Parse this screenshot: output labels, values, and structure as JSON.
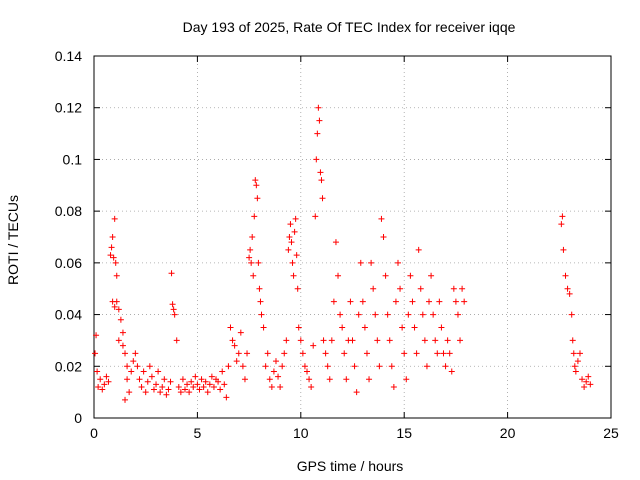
{
  "chart_data": {
    "type": "scatter",
    "title": "Day 193 of 2025, Rate Of TEC Index for receiver iqqe",
    "xlabel": "GPS time / hours",
    "ylabel": "ROTI / TECUs",
    "xlim": [
      0,
      25
    ],
    "ylim": [
      0,
      0.14
    ],
    "x_ticks": [
      "0",
      "5",
      "10",
      "15",
      "20",
      "25"
    ],
    "y_ticks": [
      "0",
      "0.02",
      "0.04",
      "0.06",
      "0.08",
      "0.1",
      "0.12",
      "0.14"
    ],
    "grid": true,
    "legend": "none",
    "marker": "+",
    "color": "#ff0000",
    "series": [
      {
        "points": [
          [
            0.05,
            0.025
          ],
          [
            0.1,
            0.032
          ],
          [
            0.15,
            0.018
          ],
          [
            0.2,
            0.012
          ],
          [
            0.3,
            0.015
          ],
          [
            0.4,
            0.011
          ],
          [
            0.5,
            0.013
          ],
          [
            0.6,
            0.016
          ],
          [
            0.7,
            0.014
          ],
          [
            0.8,
            0.063
          ],
          [
            0.85,
            0.066
          ],
          [
            0.9,
            0.07
          ],
          [
            0.95,
            0.062
          ],
          [
            1.0,
            0.077
          ],
          [
            1.05,
            0.06
          ],
          [
            1.1,
            0.055
          ],
          [
            0.9,
            0.045
          ],
          [
            1.0,
            0.043
          ],
          [
            1.1,
            0.045
          ],
          [
            1.2,
            0.042
          ],
          [
            1.3,
            0.038
          ],
          [
            1.4,
            0.033
          ],
          [
            1.5,
            0.025
          ],
          [
            1.6,
            0.02
          ],
          [
            1.2,
            0.03
          ],
          [
            1.4,
            0.028
          ],
          [
            1.6,
            0.015
          ],
          [
            1.5,
            0.007
          ],
          [
            1.7,
            0.01
          ],
          [
            1.8,
            0.018
          ],
          [
            1.9,
            0.022
          ],
          [
            2.0,
            0.025
          ],
          [
            2.1,
            0.02
          ],
          [
            2.2,
            0.015
          ],
          [
            2.3,
            0.012
          ],
          [
            2.4,
            0.018
          ],
          [
            2.5,
            0.01
          ],
          [
            2.6,
            0.014
          ],
          [
            2.7,
            0.02
          ],
          [
            2.8,
            0.016
          ],
          [
            2.9,
            0.011
          ],
          [
            3.0,
            0.013
          ],
          [
            3.1,
            0.018
          ],
          [
            3.2,
            0.01
          ],
          [
            3.3,
            0.012
          ],
          [
            3.4,
            0.015
          ],
          [
            3.5,
            0.009
          ],
          [
            3.6,
            0.011
          ],
          [
            3.7,
            0.014
          ],
          [
            3.75,
            0.056
          ],
          [
            3.8,
            0.044
          ],
          [
            3.85,
            0.042
          ],
          [
            3.9,
            0.04
          ],
          [
            4.0,
            0.03
          ],
          [
            4.1,
            0.012
          ],
          [
            4.2,
            0.01
          ],
          [
            4.3,
            0.015
          ],
          [
            4.4,
            0.011
          ],
          [
            4.5,
            0.013
          ],
          [
            4.6,
            0.01
          ],
          [
            4.7,
            0.014
          ],
          [
            4.8,
            0.012
          ],
          [
            4.9,
            0.016
          ],
          [
            5.0,
            0.013
          ],
          [
            5.1,
            0.011
          ],
          [
            5.2,
            0.015
          ],
          [
            5.3,
            0.012
          ],
          [
            5.4,
            0.014
          ],
          [
            5.5,
            0.01
          ],
          [
            5.6,
            0.013
          ],
          [
            5.7,
            0.016
          ],
          [
            5.8,
            0.012
          ],
          [
            5.9,
            0.015
          ],
          [
            6.0,
            0.014
          ],
          [
            6.1,
            0.011
          ],
          [
            6.2,
            0.018
          ],
          [
            6.3,
            0.013
          ],
          [
            6.4,
            0.008
          ],
          [
            6.5,
            0.02
          ],
          [
            6.6,
            0.035
          ],
          [
            6.7,
            0.03
          ],
          [
            6.8,
            0.028
          ],
          [
            6.9,
            0.022
          ],
          [
            7.0,
            0.025
          ],
          [
            7.1,
            0.033
          ],
          [
            7.2,
            0.02
          ],
          [
            7.3,
            0.015
          ],
          [
            7.4,
            0.025
          ],
          [
            7.5,
            0.062
          ],
          [
            7.55,
            0.065
          ],
          [
            7.6,
            0.06
          ],
          [
            7.65,
            0.07
          ],
          [
            7.7,
            0.055
          ],
          [
            7.75,
            0.078
          ],
          [
            7.8,
            0.092
          ],
          [
            7.85,
            0.09
          ],
          [
            7.9,
            0.085
          ],
          [
            7.95,
            0.06
          ],
          [
            8.0,
            0.05
          ],
          [
            8.05,
            0.045
          ],
          [
            8.1,
            0.04
          ],
          [
            8.2,
            0.035
          ],
          [
            8.3,
            0.02
          ],
          [
            8.4,
            0.025
          ],
          [
            8.5,
            0.015
          ],
          [
            8.6,
            0.012
          ],
          [
            8.7,
            0.018
          ],
          [
            8.8,
            0.022
          ],
          [
            8.9,
            0.016
          ],
          [
            9.0,
            0.012
          ],
          [
            9.1,
            0.02
          ],
          [
            9.2,
            0.025
          ],
          [
            9.3,
            0.03
          ],
          [
            9.4,
            0.065
          ],
          [
            9.45,
            0.07
          ],
          [
            9.5,
            0.075
          ],
          [
            9.55,
            0.068
          ],
          [
            9.6,
            0.06
          ],
          [
            9.65,
            0.055
          ],
          [
            9.7,
            0.072
          ],
          [
            9.75,
            0.077
          ],
          [
            9.8,
            0.063
          ],
          [
            9.85,
            0.05
          ],
          [
            9.9,
            0.035
          ],
          [
            10.0,
            0.03
          ],
          [
            10.1,
            0.025
          ],
          [
            10.2,
            0.02
          ],
          [
            10.3,
            0.018
          ],
          [
            10.4,
            0.015
          ],
          [
            10.5,
            0.012
          ],
          [
            10.6,
            0.028
          ],
          [
            10.7,
            0.078
          ],
          [
            10.75,
            0.1
          ],
          [
            10.8,
            0.11
          ],
          [
            10.85,
            0.12
          ],
          [
            10.9,
            0.115
          ],
          [
            10.95,
            0.095
          ],
          [
            11.0,
            0.092
          ],
          [
            11.05,
            0.085
          ],
          [
            11.1,
            0.03
          ],
          [
            11.2,
            0.025
          ],
          [
            11.3,
            0.02
          ],
          [
            11.4,
            0.015
          ],
          [
            11.5,
            0.03
          ],
          [
            11.6,
            0.045
          ],
          [
            11.7,
            0.068
          ],
          [
            11.8,
            0.055
          ],
          [
            11.9,
            0.04
          ],
          [
            12.0,
            0.035
          ],
          [
            12.1,
            0.025
          ],
          [
            12.2,
            0.015
          ],
          [
            12.3,
            0.03
          ],
          [
            12.4,
            0.045
          ],
          [
            12.5,
            0.03
          ],
          [
            12.6,
            0.02
          ],
          [
            12.7,
            0.01
          ],
          [
            12.8,
            0.04
          ],
          [
            12.9,
            0.06
          ],
          [
            13.0,
            0.045
          ],
          [
            13.1,
            0.035
          ],
          [
            13.2,
            0.025
          ],
          [
            13.3,
            0.015
          ],
          [
            13.4,
            0.06
          ],
          [
            13.5,
            0.05
          ],
          [
            13.6,
            0.04
          ],
          [
            13.7,
            0.03
          ],
          [
            13.8,
            0.02
          ],
          [
            13.9,
            0.077
          ],
          [
            14.0,
            0.07
          ],
          [
            14.1,
            0.055
          ],
          [
            14.2,
            0.04
          ],
          [
            14.3,
            0.03
          ],
          [
            14.4,
            0.02
          ],
          [
            14.5,
            0.012
          ],
          [
            14.6,
            0.045
          ],
          [
            14.7,
            0.06
          ],
          [
            14.8,
            0.05
          ],
          [
            14.9,
            0.035
          ],
          [
            15.0,
            0.025
          ],
          [
            15.1,
            0.015
          ],
          [
            15.2,
            0.04
          ],
          [
            15.3,
            0.055
          ],
          [
            15.4,
            0.045
          ],
          [
            15.5,
            0.035
          ],
          [
            15.6,
            0.025
          ],
          [
            15.7,
            0.065
          ],
          [
            15.8,
            0.05
          ],
          [
            15.9,
            0.04
          ],
          [
            16.0,
            0.03
          ],
          [
            16.1,
            0.02
          ],
          [
            16.2,
            0.045
          ],
          [
            16.3,
            0.055
          ],
          [
            16.4,
            0.04
          ],
          [
            16.5,
            0.03
          ],
          [
            16.6,
            0.025
          ],
          [
            16.7,
            0.045
          ],
          [
            16.8,
            0.035
          ],
          [
            16.9,
            0.025
          ],
          [
            17.0,
            0.02
          ],
          [
            17.1,
            0.03
          ],
          [
            17.2,
            0.025
          ],
          [
            17.3,
            0.018
          ],
          [
            17.4,
            0.05
          ],
          [
            17.5,
            0.045
          ],
          [
            17.6,
            0.04
          ],
          [
            17.7,
            0.03
          ],
          [
            17.8,
            0.05
          ],
          [
            17.9,
            0.045
          ],
          [
            22.6,
            0.075
          ],
          [
            22.65,
            0.078
          ],
          [
            22.7,
            0.065
          ],
          [
            22.8,
            0.055
          ],
          [
            22.9,
            0.05
          ],
          [
            23.0,
            0.048
          ],
          [
            23.1,
            0.04
          ],
          [
            23.15,
            0.03
          ],
          [
            23.2,
            0.025
          ],
          [
            23.25,
            0.02
          ],
          [
            23.3,
            0.018
          ],
          [
            23.4,
            0.022
          ],
          [
            23.5,
            0.025
          ],
          [
            23.6,
            0.015
          ],
          [
            23.7,
            0.012
          ],
          [
            23.8,
            0.014
          ],
          [
            23.9,
            0.016
          ],
          [
            24.0,
            0.013
          ]
        ]
      }
    ]
  }
}
